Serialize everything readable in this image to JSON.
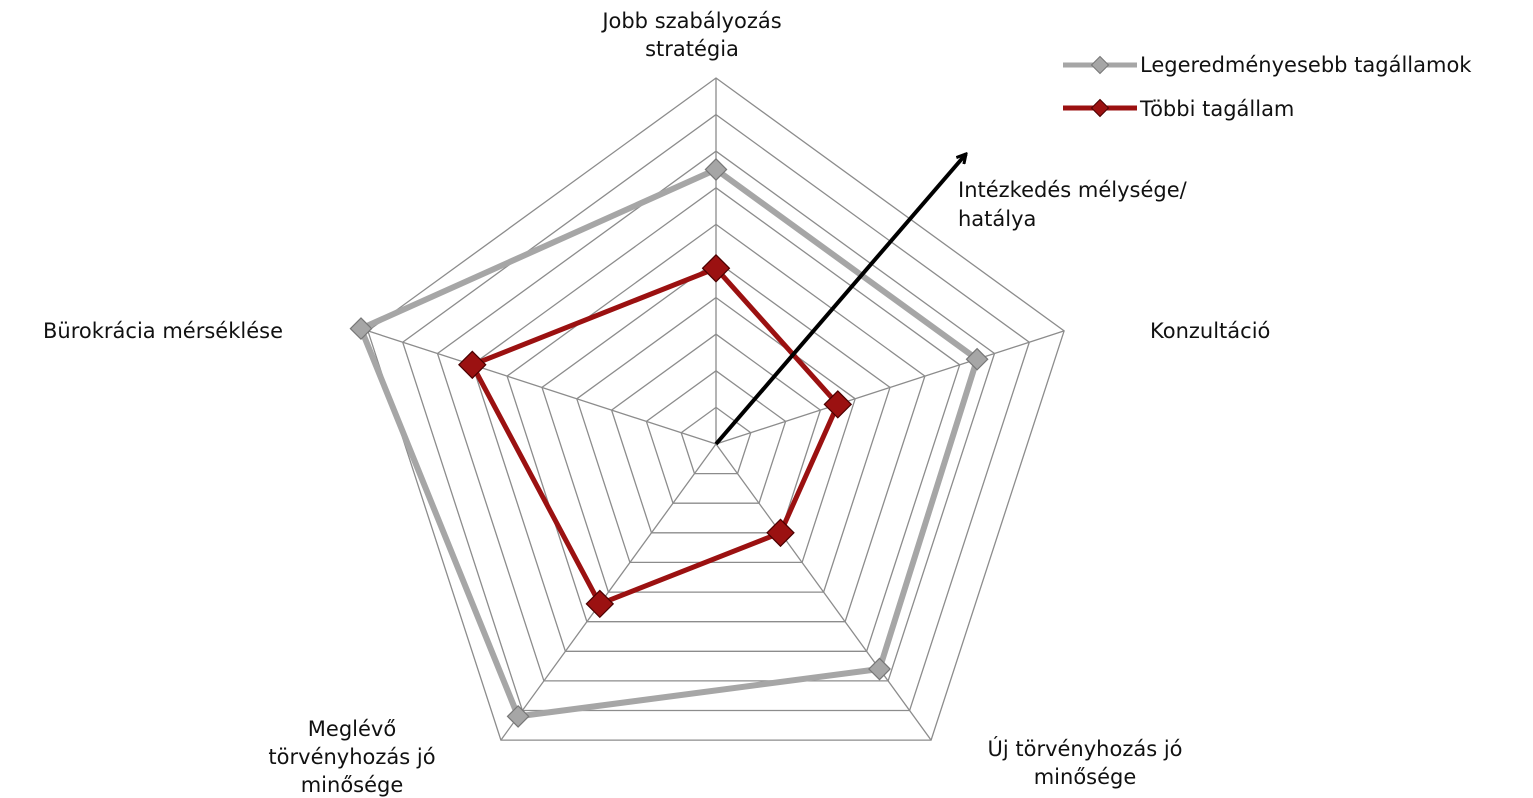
{
  "chart_data": {
    "type": "radar",
    "axes": [
      [
        "Jobb szabályozás",
        "stratégia"
      ],
      [
        "Konzultáció"
      ],
      [
        "Új törvényhozás jó",
        "minősége"
      ],
      [
        "Meglévő",
        "törvényhozás jó",
        "minősége"
      ],
      [
        "Bürokrácia mérséklése"
      ]
    ],
    "rlim": [
      0,
      10
    ],
    "levels": 10,
    "grid": true,
    "series": [
      {
        "name": "Legeredményesebb tagállamok",
        "values": [
          7.5,
          7.5,
          7.6,
          9.2,
          10.2
        ],
        "color": "#a6a6a6"
      },
      {
        "name": "Többi tagállam",
        "values": [
          4.8,
          3.5,
          3.0,
          5.4,
          7.0
        ],
        "color": "#9b1111"
      }
    ],
    "annotation": [
      "Intézkedés mélysége/",
      "hatálya"
    ],
    "legend_position": "top-right"
  }
}
